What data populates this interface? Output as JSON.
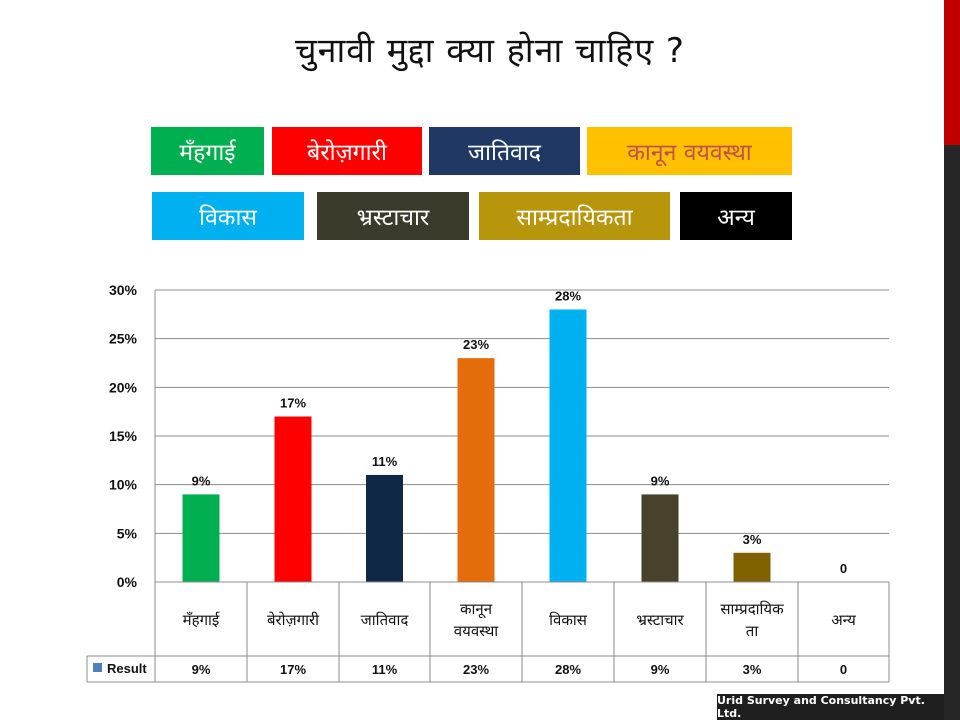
{
  "title": "चुनावी मुद्दा क्या होना चाहिए ?",
  "legend": [
    {
      "label": "मँहगाई",
      "color": "#00b050"
    },
    {
      "label": "बेरोज़गारी",
      "color": "#ff0000"
    },
    {
      "label": "जातिवाद",
      "color": "#1f3864"
    },
    {
      "label": "कानून वयवस्था",
      "color": "#ffc000"
    },
    {
      "label": "विकास",
      "color": "#00b0f0"
    },
    {
      "label": "भ्रस्टाचार",
      "color": "#3b3b2b"
    },
    {
      "label": "साम्प्रदायिकता",
      "color": "#b8960c"
    },
    {
      "label": "अन्य",
      "color": "#000000"
    }
  ],
  "chart_data": {
    "type": "bar",
    "categories": [
      "मँहगाई",
      "बेरोज़गारी",
      "जातिवाद",
      "कानून वयवस्था",
      "विकास",
      "भ्रस्टाचार",
      "साम्प्रदायिक ता",
      "अन्य"
    ],
    "series": [
      {
        "name": "Result",
        "values": [
          9,
          17,
          11,
          23,
          28,
          9,
          3,
          0
        ]
      }
    ],
    "data_labels": [
      "9%",
      "17%",
      "11%",
      "23%",
      "28%",
      "9%",
      "3%",
      "0"
    ],
    "bar_colors": [
      "#00b050",
      "#ff0000",
      "#0f2846",
      "#e46c0a",
      "#00b0f0",
      "#48422b",
      "#806000",
      "#000000"
    ],
    "yticks": [
      "0%",
      "5%",
      "10%",
      "15%",
      "20%",
      "25%",
      "30%"
    ],
    "ylim": [
      0,
      30
    ],
    "grid": true,
    "data_table": true,
    "table_row_label": "Result",
    "table_values": [
      "9%",
      "17%",
      "11%",
      "23%",
      "28%",
      "9%",
      "3%",
      "0"
    ],
    "series_color": "#4f81bd"
  },
  "footer": "Urid Survey and Consultancy Pvt. Ltd.",
  "colors": {
    "accent_top": "#c00000",
    "accent_bottom": "#262626"
  }
}
